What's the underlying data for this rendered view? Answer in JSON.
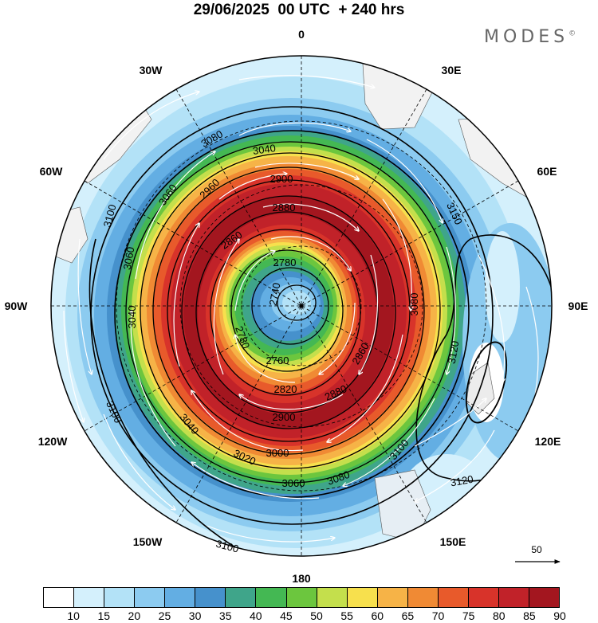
{
  "title": "29/06/2025  00 UTC  + 240 hrs",
  "brand": "MODES",
  "brand_mark": "©",
  "longitude_labels": {
    "lon_0": "0",
    "lon_30e": "30E",
    "lon_60e": "60E",
    "lon_90e": "90E",
    "lon_120e": "120E",
    "lon_150e": "150E",
    "lon_180": "180",
    "lon_150w": "150W",
    "lon_120w": "120W",
    "lon_90w": "90W",
    "lon_60w": "60W",
    "lon_30w": "30W"
  },
  "contour_labels": [
    "3080",
    "3040",
    "3060",
    "2960",
    "2900",
    "2880",
    "3100",
    "3060",
    "2860",
    "2780",
    "2740",
    "3040",
    "2760",
    "2780",
    "2820",
    "2860",
    "2880",
    "2900",
    "3040",
    "3000",
    "3020",
    "3060",
    "3080",
    "3100",
    "3120",
    "3080",
    "3100",
    "3120",
    "3100",
    "3150"
  ],
  "colorbar": {
    "ticks": [
      "10",
      "15",
      "20",
      "25",
      "30",
      "35",
      "40",
      "45",
      "50",
      "55",
      "60",
      "65",
      "70",
      "75",
      "80",
      "85",
      "90"
    ],
    "colors": [
      "#ffffff",
      "#d4f0fc",
      "#b3e2f7",
      "#8ccbf0",
      "#63aee3",
      "#4691cc",
      "#3fa58a",
      "#44b853",
      "#6cc63e",
      "#c4df4c",
      "#f7e04d",
      "#f6b347",
      "#f08a34",
      "#e85a2b",
      "#d8332a",
      "#c12229",
      "#a3161f"
    ]
  },
  "reference_vector": {
    "label": "50"
  }
}
